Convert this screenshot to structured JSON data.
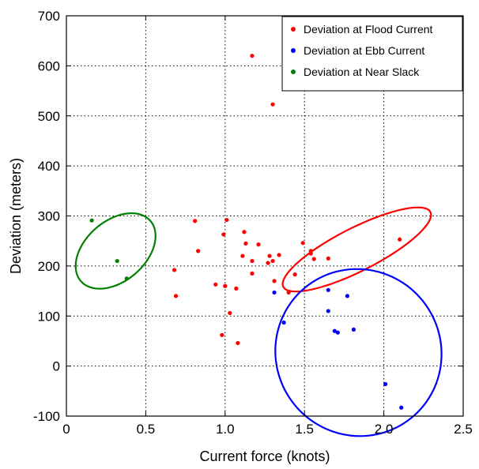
{
  "chart_data": {
    "type": "scatter",
    "title": "",
    "xlabel": "Current force (knots)",
    "ylabel": "Deviation (meters)",
    "xlim": [
      0,
      2.5
    ],
    "ylim": [
      -100,
      700
    ],
    "xticks": [
      "0",
      "0.5",
      "1.0",
      "1.5",
      "2.0",
      "2.5"
    ],
    "xtick_values": [
      0,
      0.5,
      1.0,
      1.5,
      2.0,
      2.5
    ],
    "yticks": [
      "-100",
      "0",
      "100",
      "200",
      "300",
      "400",
      "500",
      "600",
      "700"
    ],
    "ytick_values": [
      -100,
      0,
      100,
      200,
      300,
      400,
      500,
      600,
      700
    ],
    "grid": true,
    "legend_position": "top-right",
    "series": [
      {
        "name": "Deviation at Flood Current",
        "color": "#ff0000",
        "x": [
          1.17,
          1.3,
          0.81,
          1.01,
          0.83,
          0.99,
          1.12,
          1.13,
          1.21,
          1.11,
          1.28,
          1.34,
          1.17,
          1.3,
          1.27,
          1.49,
          1.54,
          1.54,
          1.56,
          1.65,
          2.1,
          0.68,
          0.94,
          1.0,
          1.07,
          1.17,
          1.31,
          1.44,
          1.4,
          0.69,
          1.03,
          0.98,
          1.08
        ],
        "y": [
          620,
          523,
          290,
          292,
          230,
          263,
          268,
          245,
          243,
          220,
          220,
          222,
          210,
          210,
          206,
          246,
          230,
          225,
          214,
          215,
          253,
          192,
          163,
          160,
          155,
          185,
          170,
          183,
          147,
          140,
          106,
          62,
          46
        ]
      },
      {
        "name": "Deviation at Ebb Current",
        "color": "#0000ff",
        "x": [
          1.31,
          1.37,
          1.65,
          1.77,
          1.65,
          1.69,
          1.71,
          1.81,
          2.01,
          2.11
        ],
        "y": [
          147,
          87,
          152,
          140,
          110,
          70,
          67,
          73,
          -36,
          -83
        ]
      },
      {
        "name": "Deviation at Near Slack",
        "color": "#008000",
        "x": [
          0.16,
          0.32,
          0.38
        ],
        "y": [
          291,
          210,
          175
        ]
      }
    ],
    "ellipses": [
      {
        "series": "Deviation at Near Slack",
        "color": "#008000",
        "cx": 0.31,
        "cy": 230,
        "rx": 0.29,
        "ry": 60,
        "angle_deg": -41
      },
      {
        "series": "Deviation at Flood Current",
        "color": "#ff0000",
        "cx": 1.83,
        "cy": 233,
        "rx": 0.52,
        "ry": 43,
        "angle_deg": -27
      },
      {
        "series": "Deviation at Ebb Current",
        "color": "#0000ff",
        "cx": 1.84,
        "cy": 27,
        "rx": 0.52,
        "ry": 168,
        "angle_deg": -36
      }
    ]
  }
}
